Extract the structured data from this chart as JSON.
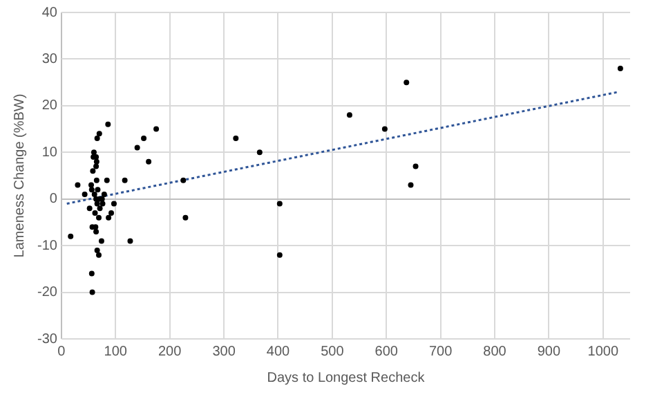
{
  "chart_data": {
    "type": "scatter",
    "xlabel": "Days to Longest Recheck",
    "ylabel": "Lameness Change (%BW)",
    "xlim": [
      0,
      1050
    ],
    "xticks": [
      0,
      100,
      200,
      300,
      400,
      500,
      600,
      700,
      800,
      900,
      1000
    ],
    "ylim": [
      -30,
      40
    ],
    "yticks": [
      -30,
      -20,
      -10,
      0,
      10,
      20,
      30,
      40
    ],
    "grid": true,
    "legend": false,
    "series": [
      {
        "type": "scatter",
        "color": "#000000",
        "marker": "circle",
        "x": [
          17,
          30,
          43,
          52,
          55,
          56,
          58,
          56,
          57,
          57,
          59,
          60,
          61,
          62,
          63,
          64,
          64,
          64,
          65,
          65,
          66,
          64,
          66,
          67,
          66,
          70,
          69,
          69,
          70,
          71,
          74,
          75,
          76,
          79,
          84,
          86,
          87,
          92,
          97,
          117,
          127,
          140,
          152,
          161,
          175,
          225,
          229,
          322,
          366,
          403,
          403,
          532,
          597,
          637,
          654,
          645,
          1032
        ],
        "values": [
          -8,
          3,
          1,
          -2,
          3,
          2,
          6,
          -16,
          -20,
          -6,
          9,
          10,
          1,
          -3,
          -6,
          7,
          0,
          9,
          4,
          8,
          -1,
          -7,
          13,
          2,
          -11,
          14,
          -12,
          -4,
          0,
          -2,
          -9,
          0,
          -1,
          1,
          4,
          16,
          -4,
          -3,
          -1,
          4,
          -9,
          11,
          13,
          8,
          15,
          4,
          -4,
          13,
          10,
          -1,
          -12,
          18,
          15,
          25,
          7,
          3,
          28
        ]
      },
      {
        "type": "line",
        "color": "#2f5597",
        "line_style": "dotted",
        "marker": "none",
        "x": [
          10,
          1030
        ],
        "values": [
          -1,
          23
        ]
      }
    ]
  }
}
